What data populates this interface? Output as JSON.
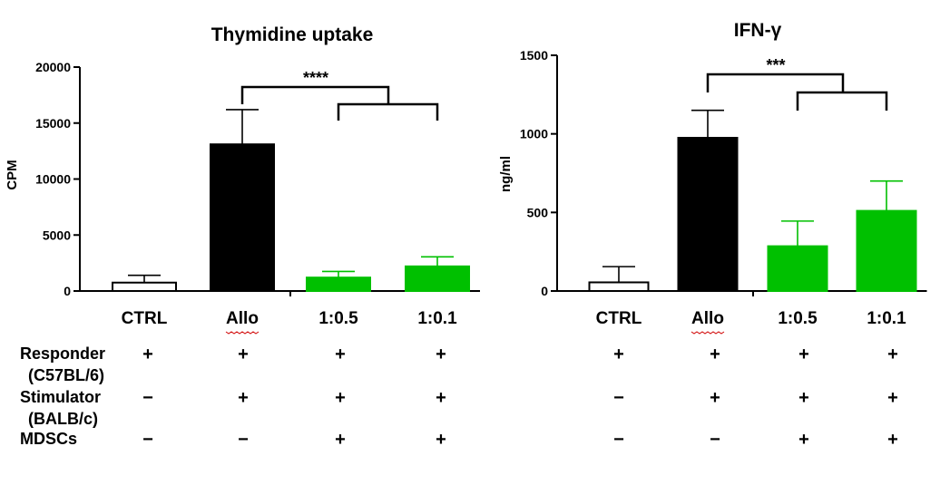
{
  "chart_data": [
    {
      "type": "bar",
      "title": "Thymidine uptake",
      "ylabel": "CPM",
      "ylim": [
        0,
        20000
      ],
      "yticks": [
        0,
        5000,
        10000,
        15000,
        20000
      ],
      "categories": [
        "CTRL",
        "Allo",
        "1:0.5",
        "1:0.1"
      ],
      "values": [
        750,
        13100,
        1200,
        2200
      ],
      "errors": [
        650,
        3100,
        550,
        850
      ],
      "bar_colors": [
        "#ffffff",
        "#000000",
        "#00c000",
        "#00c000"
      ],
      "significance": "****",
      "grid": false
    },
    {
      "type": "bar",
      "title": "IFN-γ",
      "ylabel": "ng/ml",
      "ylim": [
        0,
        1500
      ],
      "yticks": [
        0,
        500,
        1000,
        1500
      ],
      "categories": [
        "CTRL",
        "Allo",
        "1:0.5",
        "1:0.1"
      ],
      "values": [
        55,
        975,
        285,
        510
      ],
      "errors": [
        100,
        175,
        160,
        190
      ],
      "bar_colors": [
        "#ffffff",
        "#000000",
        "#00c000",
        "#00c000"
      ],
      "significance": "***",
      "grid": false
    }
  ],
  "conditions": [
    {
      "label_lines": [
        "Responder",
        "(C57BL/6)"
      ],
      "signs": [
        "+",
        "+",
        "+",
        "+"
      ]
    },
    {
      "label_lines": [
        "Stimulator",
        "(BALB/c)"
      ],
      "signs": [
        "−",
        "+",
        "+",
        "+"
      ]
    },
    {
      "label_lines": [
        "MDSCs"
      ],
      "signs": [
        "−",
        "−",
        "+",
        "+"
      ]
    }
  ],
  "colors": {
    "ctrl_fill": "#ffffff",
    "allo_fill": "#000000",
    "mdsc_fill": "#00c000",
    "spell_underline": "#d00000"
  }
}
